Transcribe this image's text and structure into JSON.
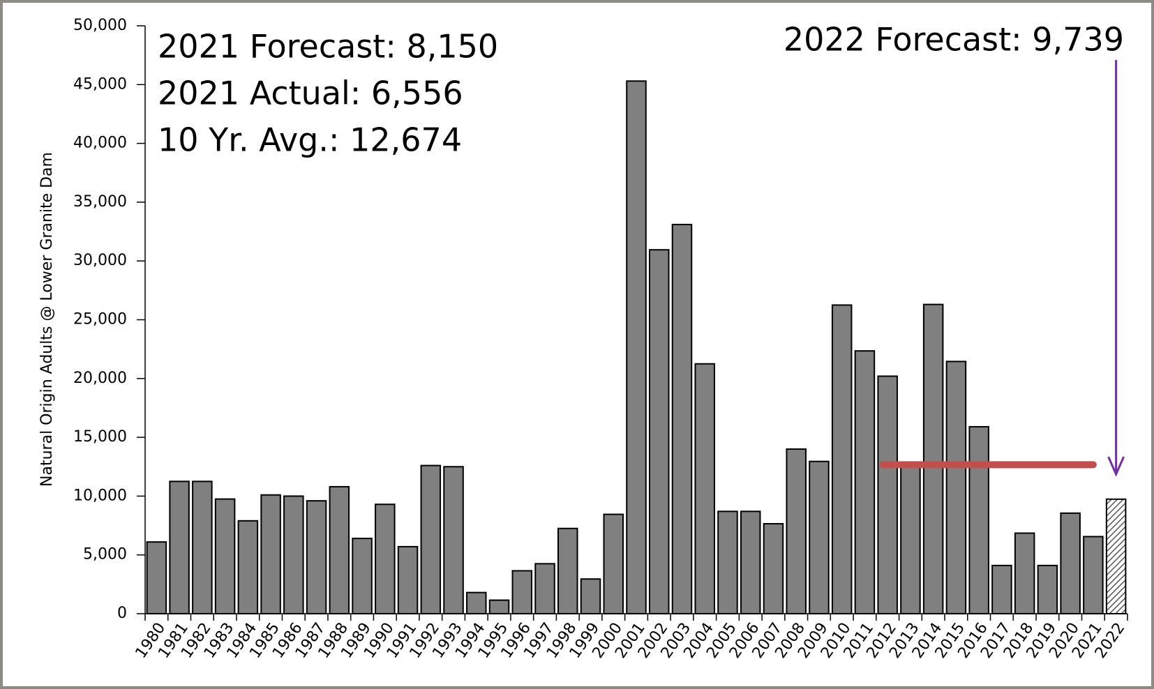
{
  "chart_data": {
    "type": "bar",
    "y_label": "Natural Origin Adults @ Lower Granite Dam",
    "annotations": [
      "2021 Forecast: 8,150",
      "2021 Actual: 6,556",
      "10 Yr. Avg.: 12,674"
    ],
    "forecast_annotation": "2022 Forecast: 9,739",
    "annotation_color": "#7030a0",
    "categories": [
      "1980",
      "1981",
      "1982",
      "1983",
      "1984",
      "1985",
      "1986",
      "1987",
      "1988",
      "1989",
      "1990",
      "1991",
      "1992",
      "1993",
      "1994",
      "1995",
      "1996",
      "1997",
      "1998",
      "1999",
      "2000",
      "2001",
      "2002",
      "2003",
      "2004",
      "2005",
      "2006",
      "2007",
      "2008",
      "2009",
      "2010",
      "2011",
      "2012",
      "2013",
      "2014",
      "2015",
      "2016",
      "2017",
      "2018",
      "2019",
      "2020",
      "2021",
      "2022"
    ],
    "values": [
      6100,
      11250,
      11250,
      9750,
      7900,
      10100,
      10000,
      9600,
      10800,
      6400,
      9300,
      5700,
      12600,
      12500,
      1800,
      1150,
      3650,
      4250,
      7250,
      2950,
      8450,
      45300,
      30950,
      33100,
      21250,
      8700,
      8700,
      7650,
      14000,
      12950,
      26250,
      22350,
      20200,
      12600,
      26300,
      21450,
      15900,
      4100,
      6850,
      4100,
      8550,
      6556,
      9739
    ],
    "color": "#808080",
    "hatched_categories": [
      "2022"
    ],
    "avg_line": {
      "value": 12674,
      "color": "#c0504d"
    },
    "ylim": [
      0,
      50000
    ],
    "yticks": [
      0,
      {
        "value": 5000,
        "label": "5,000"
      },
      {
        "value": 10000,
        "label": "10,000"
      },
      {
        "value": 15000,
        "label": "15,000"
      },
      {
        "value": 20000,
        "label": "20,000"
      },
      {
        "value": 25000,
        "label": "25,000"
      },
      {
        "value": 30000,
        "label": "30,000"
      },
      {
        "value": 35000,
        "label": "35,000"
      },
      {
        "value": 40000,
        "label": "40,000"
      },
      {
        "value": 45000,
        "label": "45,000"
      },
      {
        "value": 50000,
        "label": "50,000"
      }
    ],
    "grid": false
  }
}
